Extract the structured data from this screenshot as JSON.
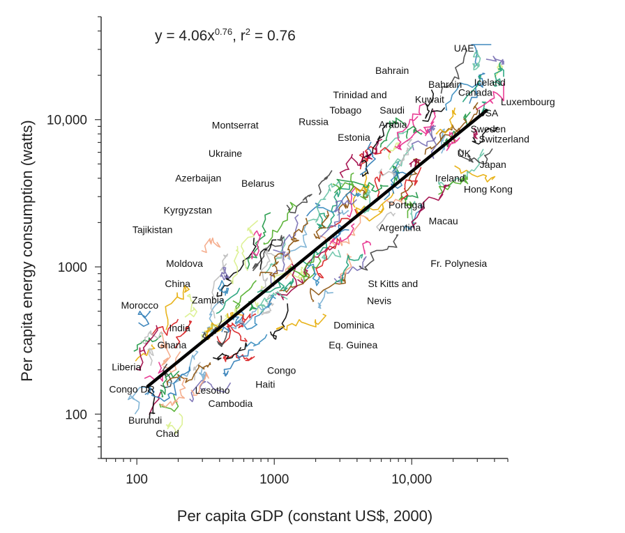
{
  "chart_data": {
    "type": "scatter",
    "scale": {
      "x": "log",
      "y": "log"
    },
    "xlim": [
      55,
      50000
    ],
    "ylim": [
      50,
      50000
    ],
    "xlabel": "Per capita GDP (constant US$, 2000)",
    "ylabel": "Per capita energy consumption (watts)",
    "x_ticks": [
      {
        "value": 100,
        "label": "100"
      },
      {
        "value": 1000,
        "label": "1000"
      },
      {
        "value": 10000,
        "label": "10,000"
      }
    ],
    "y_ticks": [
      {
        "value": 100,
        "label": "100"
      },
      {
        "value": 1000,
        "label": "1000"
      },
      {
        "value": 10000,
        "label": "10,000"
      }
    ],
    "fit": {
      "equation_parts": {
        "lhs": "y = 4.06x",
        "exp": "0.76",
        "mid": ", r",
        "sq": "2",
        "rhs": " = 0.76"
      },
      "coefficient": 4.06,
      "exponent": 0.76,
      "r2": 0.76,
      "x_range": [
        120,
        35000
      ]
    },
    "country_labels": [
      {
        "name": "UAE",
        "x": 24000,
        "y": 29000
      },
      {
        "name": "Bahrain",
        "x": 7200,
        "y": 20500
      },
      {
        "name": "Iceland",
        "x": 37000,
        "y": 17000
      },
      {
        "name": "Bahrain",
        "x": 17500,
        "y": 16500
      },
      {
        "name": "Canada",
        "x": 29000,
        "y": 14500
      },
      {
        "name": "Trinidad and",
        "x": 4200,
        "y": 14000
      },
      {
        "name": "Kuwait",
        "x": 13500,
        "y": 13000
      },
      {
        "name": "Tobago",
        "x": 3300,
        "y": 11000
      },
      {
        "name": "Saudi",
        "x": 7200,
        "y": 11000
      },
      {
        "name": "USA",
        "x": 36000,
        "y": 10500
      },
      {
        "name": "Luxembourg",
        "x": 70000,
        "y": 12500
      },
      {
        "name": "Russia",
        "x": 1930,
        "y": 9200
      },
      {
        "name": "Montserrat",
        "x": 520,
        "y": 8700
      },
      {
        "name": "Arabia",
        "x": 7300,
        "y": 8800
      },
      {
        "name": "Sweden",
        "x": 36000,
        "y": 8200
      },
      {
        "name": "Estonia",
        "x": 3800,
        "y": 7200
      },
      {
        "name": "Switzerland",
        "x": 47000,
        "y": 7000
      },
      {
        "name": "Ukraine",
        "x": 440,
        "y": 5600
      },
      {
        "name": "UK",
        "x": 24000,
        "y": 5600
      },
      {
        "name": "Japan",
        "x": 39000,
        "y": 4700
      },
      {
        "name": "Azerbaijan",
        "x": 280,
        "y": 3800
      },
      {
        "name": "Ireland",
        "x": 19000,
        "y": 3800
      },
      {
        "name": "Belarus",
        "x": 760,
        "y": 3500
      },
      {
        "name": "Hong Kong",
        "x": 36000,
        "y": 3200
      },
      {
        "name": "Kyrgyzstan",
        "x": 235,
        "y": 2300
      },
      {
        "name": "Portugal",
        "x": 9200,
        "y": 2500
      },
      {
        "name": "Macau",
        "x": 17000,
        "y": 1950
      },
      {
        "name": "Tajikistan",
        "x": 130,
        "y": 1700
      },
      {
        "name": "Argentina",
        "x": 8200,
        "y": 1750
      },
      {
        "name": "Moldova",
        "x": 222,
        "y": 1000
      },
      {
        "name": "Fr. Polynesia",
        "x": 22000,
        "y": 1000
      },
      {
        "name": "China",
        "x": 198,
        "y": 730
      },
      {
        "name": "St Kitts and",
        "x": 7300,
        "y": 730
      },
      {
        "name": "Nevis",
        "x": 5800,
        "y": 560
      },
      {
        "name": "Zambia",
        "x": 330,
        "y": 565
      },
      {
        "name": "Morocco",
        "x": 105,
        "y": 520
      },
      {
        "name": "India",
        "x": 205,
        "y": 365
      },
      {
        "name": "Dominica",
        "x": 3800,
        "y": 382
      },
      {
        "name": "Ghana",
        "x": 180,
        "y": 280
      },
      {
        "name": "Eq. Guinea",
        "x": 3750,
        "y": 280
      },
      {
        "name": "Liberia",
        "x": 84,
        "y": 198
      },
      {
        "name": "Congo",
        "x": 1130,
        "y": 188
      },
      {
        "name": "Congo DR",
        "x": 92,
        "y": 140
      },
      {
        "name": "Haiti",
        "x": 860,
        "y": 151
      },
      {
        "name": "Lesotho",
        "x": 355,
        "y": 138
      },
      {
        "name": "Cambodia",
        "x": 480,
        "y": 112
      },
      {
        "name": "Burundi",
        "x": 115,
        "y": 86
      },
      {
        "name": "Chad",
        "x": 167,
        "y": 70
      }
    ],
    "series_colors": [
      "#1a9641",
      "#2c7bb6",
      "#d7191c",
      "#756bb1",
      "#e6ab02",
      "#66c2a5",
      "#8c510a",
      "#e7298a",
      "#4dac26",
      "#404040",
      "#74add1",
      "#bdbdbd",
      "#1b9e77",
      "#f4a582",
      "#3288bd",
      "#9e0142",
      "#d9ef8b",
      "#000000"
    ],
    "fit_color": "#000000"
  }
}
